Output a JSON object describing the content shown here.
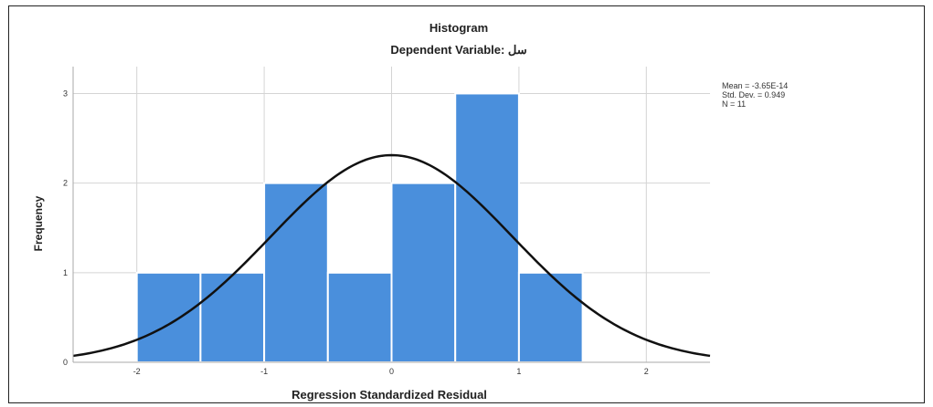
{
  "chart_data": {
    "type": "bar",
    "title": "Histogram",
    "subtitle": "Dependent Variable: سل",
    "xlabel": "Regression Standardized Residual",
    "ylabel": "Frequency",
    "bins": [
      {
        "x0": -2.0,
        "x1": -1.5,
        "count": 1
      },
      {
        "x0": -1.5,
        "x1": -1.0,
        "count": 1
      },
      {
        "x0": -1.0,
        "x1": -0.5,
        "count": 2
      },
      {
        "x0": -0.5,
        "x1": 0.0,
        "count": 1
      },
      {
        "x0": 0.0,
        "x1": 0.5,
        "count": 2
      },
      {
        "x0": 0.5,
        "x1": 1.0,
        "count": 3
      },
      {
        "x0": 1.0,
        "x1": 1.5,
        "count": 1
      }
    ],
    "normal_curve": {
      "mean": 0.0,
      "std": 0.949,
      "n": 11,
      "bin_width": 0.5
    },
    "xlim": [
      -2.5,
      2.5
    ],
    "ylim": [
      0,
      3.3
    ],
    "x_ticks": [
      "-2",
      "-1",
      "0",
      "1",
      "2"
    ],
    "y_ticks": [
      "0",
      "1",
      "2",
      "3"
    ],
    "stats": [
      "Mean = -3.65E-14",
      "Std. Dev. = 0.949",
      "N = 11"
    ],
    "grid": true,
    "colors": {
      "bar": "#4a8fdc",
      "bar_edge": "#ffffff",
      "curve": "#111111",
      "grid": "#d4d4d4"
    }
  }
}
